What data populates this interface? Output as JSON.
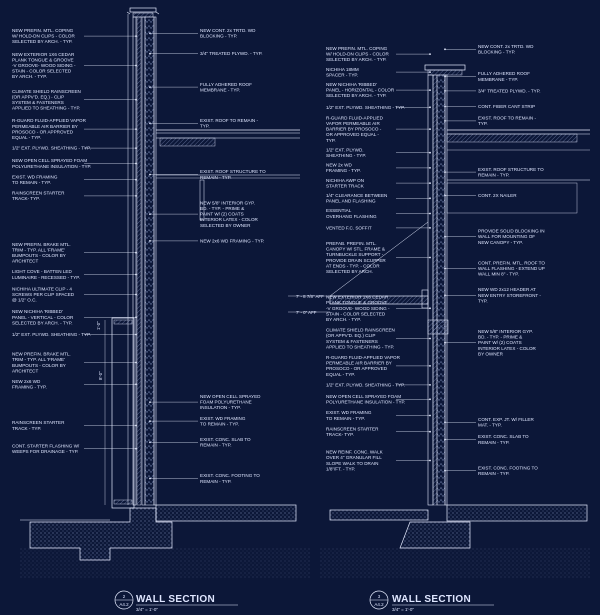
{
  "colors": {
    "background": "#0c1738",
    "linework": "#e6ecff",
    "hatch": "#9fb0dd"
  },
  "left_section": {
    "title": "WALL SECTION",
    "ref_top": "2",
    "ref_bottom": "A4.2",
    "scale": "3/4\" = 1'-0\"",
    "callouts_left": [
      [
        "NEW PREFIN. MTL. COPING",
        "W/ HOLD-DN CLIPS - COLOR",
        "SELECTED BY ARCH. - TYP."
      ],
      [
        "NEW EXTERIOR 1X6 CEDAR",
        "PLANK TONGUE & GROOVE",
        "-V GROOVE- WOOD SIDING -",
        "STAIN - COLOR SELECTED",
        "BY ARCH. - TYP."
      ],
      [
        "CLIMATE SHIELD RAINSCREEN",
        "(OR APPV'D. EQ.) - CLIP",
        "SYSTEM & FASTENERS",
        "APPLIED TO SHEATHING - TYP."
      ],
      [
        "R-GUARD FLUID-APPLIED VAPOR",
        "PERMEABLE AIR BARRIER BY",
        "PROSOCO - OR APPROVED",
        "EQUAL - TYP."
      ],
      [
        "1/2\" EXT. PLYWD. SHEATHING - TYP."
      ],
      [
        "NEW OPEN CELL SPRAYED FOAM",
        "POLYURETHANE INSULATION - TYP."
      ],
      [
        "EXIST. WD FRAMING",
        "TO REMAIN - TYP."
      ],
      [
        "RAINSCREEN STARTER",
        "TRACK- TYP."
      ],
      [
        "NEW PREFIN. BRAKE MTL.",
        "TRIM - TYP. ALL 'FRAME'",
        "BUMPOUTS - COLOR BY",
        "ARCHITECT"
      ],
      [
        "LIGHT COVE - BATTEN LED",
        "LUMINAIRE - RECESSED - TYP."
      ],
      [
        "NICHIHA ULTIMATE CLIP - 4",
        "SCREWS PER CLIP SPACED",
        "@ 1/2\" O.C."
      ],
      [
        "NEW NICHIHA 'RIBBED'",
        "PANEL - VERTICAL - COLOR",
        "SELECTED BY ARCH. - TYP."
      ],
      [
        "1/2\" EXT. PLYWD. SHEATHING - TYP."
      ],
      [
        "NEW PREFIN. BRAKE MTL.",
        "TRIM - TYP. ALL 'FRAME'",
        "BUMPOUTS - COLOR BY",
        "ARCHITECT"
      ],
      [
        "NEW 2x6 WD",
        "FRAMING - TYP."
      ],
      [
        "RAINSCREEN STARTER",
        "TRACK - TYP."
      ],
      [
        "CONT. STARTER FLASHING W/",
        "WEEPS FOR DRAINAGE - TYP."
      ]
    ],
    "callouts_right": [
      [
        "NEW CONT. 2x TRTD. WD",
        "BLOCKING - TYP."
      ],
      [
        "3/4\" TREATED PLYWD. - TYP."
      ],
      [
        "FULLY ADHERED ROOF",
        "MEMBRANE - TYP."
      ],
      [
        "EXIST. ROOF TO REMAIN -",
        "TYP."
      ],
      [
        "EXIST. ROOF STRUCTURE TO",
        "REMAIN - TYP."
      ],
      [
        "NEW 5/8\" INTERIOR GYP.",
        "BD. - TYP. - PRIME &",
        "PAINT W/ (2) COATS",
        "INTERIOR LATEX - COLOR",
        "SELECTED BY OWNER"
      ],
      [
        "NEW 2x6 WD FRAMING - TYP."
      ],
      [
        "NEW OPEN CELL SPRAYED",
        "FOAM POLYURETHANE",
        "INSULATION - TYP."
      ],
      [
        "EXIST. WD FRAMING",
        "TO REMAIN - TYP."
      ],
      [
        "EXIST. CONC. SLAB TO",
        "REMAIN - TYP."
      ],
      [
        "EXIST. CONC. FOOTING TO",
        "REMAIN - TYP."
      ]
    ],
    "dims": [
      "3'-6\"",
      "8'-0\"",
      "1'-0\""
    ]
  },
  "right_section": {
    "title": "WALL SECTION",
    "ref_top": "3",
    "ref_bottom": "A4.2",
    "scale": "3/4\" = 1'-0\"",
    "callouts_left": [
      [
        "NEW PREFIN. MTL. COPING",
        "W/ HOLD-DN CLIPS - COLOR",
        "SELECTED BY ARCH. - TYP."
      ],
      [
        "NICHIHA 18MM",
        "SPACER - TYP."
      ],
      [
        "NEW NICHIHA 'RIBBED'",
        "PANEL - HORIZONTAL - COLOR",
        "SELECTED BY ARCH. - TYP."
      ],
      [
        "1/2\" EXT. PLYWD. SHEATHING - TYP."
      ],
      [
        "R-GUARD FLUID-APPLIED",
        "VAPOR PERMEABLE AIR",
        "BARRIER BY PROSOCO -",
        "OR APPROVED EQUAL -",
        "TYP."
      ],
      [
        "1/2\" EXT. PLYWD.",
        "SHEATHING - TYP."
      ],
      [
        "NEW 2x WD",
        "FRAMING - TYP."
      ],
      [
        "NICHIHA AWP ON",
        "STARTER TRACK"
      ],
      [
        "1/4\" CLEARANCE BETWEEN",
        "PANEL AND FLASHING"
      ],
      [
        "ESSENTIAL",
        "OVERHANG FLASHING"
      ],
      [
        "VENTED F.C. SOFFIT"
      ],
      [
        "PREFAB. PREFIN. MTL.",
        "CANOPY W/ STL. FRAME &",
        "TURNBUCKLE SUPPORT -",
        "PROVIDE DRAIN SCUPPER",
        "AT ENDS - TYP. - COLOR",
        "SELECTED BY ARCH."
      ],
      [
        "NEW EXTERIOR 1X6 CEDAR",
        "PLANK TONGUE & GROOVE",
        "-V GROOVE- WOOD SIDING -",
        "STAIN - COLOR SELECTED",
        "BY ARCH. - TYP."
      ],
      [
        "CLIMATE SHIELD RAINSCREEN",
        "(OR APPV'D. EQ.) CLIP",
        "SYSTEM & FASTENERS",
        "APPLIED TO SHEATHING - TYP."
      ],
      [
        "R-GUARD FLUID-APPLIED VAPOR",
        "PERMEABLE AIR BARRIER BY",
        "PROSOCO - OR APPROVED",
        "EQUAL - TYP."
      ],
      [
        "1/2\" EXT. PLYWD. SHEATHING - TYP."
      ],
      [
        "NEW OPEN CELL SPRAYED FOAM",
        "POLYURETHANE INSULATION - TYP."
      ],
      [
        "EXIST. WD FRAMING",
        "TO REMAIN - TYP."
      ],
      [
        "RAINSCREEN STARTER",
        "TRACK- TYP."
      ],
      [
        "NEW REINF. CONC. WALK",
        "OVER 4\" GRANULAR FILL",
        "SLOPE WALK TO DRAIN",
        "1/8\"/FT. - TYP."
      ]
    ],
    "callouts_right": [
      [
        "NEW CONT. 2x TRTD. WD",
        "BLOCKING - TYP."
      ],
      [
        "FULLY ADHERED ROOF",
        "MEMBRANE - TYP."
      ],
      [
        "3/4\" TREATED PLYWD. - TYP."
      ],
      [
        "CONT. FIBER CANT STRIP"
      ],
      [
        "EXIST. ROOF TO REMAIN -",
        "TYP."
      ],
      [
        "EXIST. ROOF STRUCTURE TO",
        "REMAIN - TYP."
      ],
      [
        "CONT. 2X NAILER"
      ],
      [
        "PROVIDE SOLID BLOCKING IN",
        "WALL FOR MOUNTING OF",
        "NEW CANOPY - TYP."
      ],
      [
        "CONT. PREFIN. MTL. ROOF TO",
        "WALL FLASHING - EXTEND UP",
        "WALL MIN 8\" - TYP."
      ],
      [
        "NEW WD 2x12 HEADER AT",
        "NEW ENTRY STOREFRONT -",
        "TYP."
      ],
      [
        "NEW 5/8\" INTERIOR GYP.",
        "BD. - TYP. - PRIME &",
        "PAINT W/ (2) COATS",
        "INTERIOR LATEX - COLOR",
        "BY OWNER"
      ],
      [
        "CONT. EXP. JT. W/ FILLER",
        "MAT. - TYP."
      ],
      [
        "EXIST. CONC. SLAB TO",
        "REMAIN - TYP."
      ],
      [
        "EXIST. CONC. FOOTING TO",
        "REMAIN - TYP."
      ]
    ],
    "dims": [
      "7' - 8 7/8\" AFF",
      "7' - 0\" AFF"
    ]
  }
}
